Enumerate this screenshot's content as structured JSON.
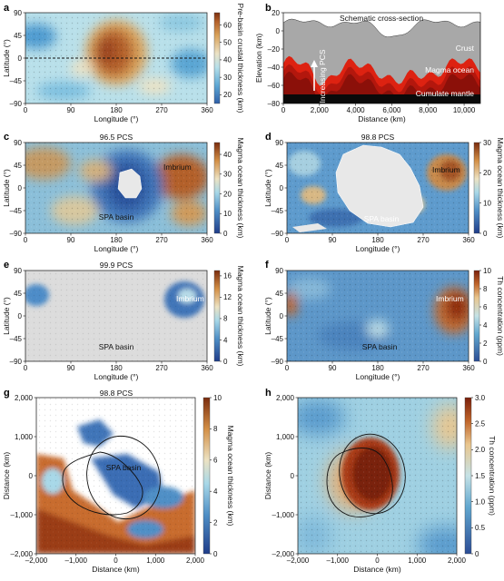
{
  "panels": [
    {
      "id": "a",
      "letter": "a",
      "type": "map",
      "title": "",
      "palette": "crust",
      "xlabel": "Longitude (°)",
      "ylabel": "Latitude (°)",
      "xticks": [
        "0",
        "90",
        "180",
        "270",
        "360"
      ],
      "yticks": [
        "90",
        "45",
        "0",
        "–45",
        "–90"
      ],
      "annotations": [],
      "colorbar": {
        "label": "Pre-basin crustal thickness (km)",
        "ticks": [
          "60",
          "50",
          "40",
          "30",
          "20"
        ],
        "min": 15,
        "max": 67
      }
    },
    {
      "id": "b",
      "letter": "b",
      "type": "cross-section",
      "title": "Schematic cross-section",
      "xlabel": "Distance (km)",
      "ylabel": "Elevation (km)",
      "xticks": [
        "0",
        "2,000",
        "4,000",
        "6,000",
        "8,000",
        "10,000"
      ],
      "yticks": [
        "20",
        "0",
        "–20",
        "–40",
        "–60",
        "–80"
      ],
      "xlim": [
        0,
        10900
      ],
      "ylim": [
        -80,
        20
      ],
      "layers": [
        "Crust",
        "Magma ocean",
        "Cumulate mantle"
      ],
      "arrow_text": "Increasing PCS"
    },
    {
      "id": "c",
      "letter": "c",
      "type": "map",
      "title": "96.5 PCS",
      "palette": "magma",
      "xlabel": "Longitude (°)",
      "ylabel": "Latitude (°)",
      "xticks": [
        "0",
        "90",
        "180",
        "270",
        "360"
      ],
      "yticks": [
        "90",
        "45",
        "0",
        "–45",
        "–90"
      ],
      "annotations": [
        "Imbrium",
        "SPA basin"
      ],
      "colorbar": {
        "label": "Magma ocean thickness (km)",
        "ticks": [
          "40",
          "30",
          "20",
          "10",
          "0"
        ],
        "min": 0,
        "max": 46
      }
    },
    {
      "id": "d",
      "letter": "d",
      "type": "map",
      "title": "98.8 PCS",
      "palette": "magma",
      "xlabel": "Longitude (°)",
      "ylabel": "Latitude (°)",
      "xticks": [
        "0",
        "90",
        "180",
        "270",
        "360"
      ],
      "yticks": [
        "90",
        "45",
        "0",
        "–45",
        "–90"
      ],
      "annotations": [
        "Imbrium",
        "SPA basin"
      ],
      "colorbar": {
        "label": "Magma ocean thickness (km)",
        "ticks": [
          "30",
          "20",
          "10",
          "0"
        ],
        "min": 0,
        "max": 30
      }
    },
    {
      "id": "e",
      "letter": "e",
      "type": "map",
      "title": "99.9 PCS",
      "palette": "magma",
      "xlabel": "Longitude (°)",
      "ylabel": "Latitude (°)",
      "xticks": [
        "0",
        "90",
        "180",
        "270",
        "360"
      ],
      "yticks": [
        "90",
        "45",
        "0",
        "–45",
        "–90"
      ],
      "annotations": [
        "Imbrium",
        "SPA basin"
      ],
      "colorbar": {
        "label": "Magma ocean thickness (km)",
        "ticks": [
          "16",
          "12",
          "8",
          "4",
          "0"
        ],
        "min": 0,
        "max": 17
      }
    },
    {
      "id": "f",
      "letter": "f",
      "type": "map",
      "title": "",
      "palette": "thorium",
      "xlabel": "Longitude (°)",
      "ylabel": "Latitude (°)",
      "xticks": [
        "0",
        "90",
        "180",
        "270",
        "360"
      ],
      "yticks": [
        "90",
        "45",
        "0",
        "–45",
        "–90"
      ],
      "annotations": [
        "Imbrium",
        "SPA basin"
      ],
      "colorbar": {
        "label": "Th concentration (ppm)",
        "ticks": [
          "10",
          "8",
          "6",
          "4",
          "2",
          "0"
        ],
        "min": 0,
        "max": 10
      }
    },
    {
      "id": "g",
      "letter": "g",
      "type": "polar",
      "title": "98.8 PCS",
      "palette": "magma",
      "xlabel": "Distance (km)",
      "ylabel": "Distance (km)",
      "xticks": [
        "–2,000",
        "–1,000",
        "0",
        "1,000",
        "2,000"
      ],
      "yticks": [
        "2,000",
        "1,000",
        "0",
        "–1,000",
        "–2,000"
      ],
      "annotations": [
        "SPA basin"
      ],
      "colorbar": {
        "label": "Magma ocean thickness (km)",
        "ticks": [
          "10",
          "8",
          "6",
          "4",
          "2",
          "0"
        ],
        "min": 0,
        "max": 10
      }
    },
    {
      "id": "h",
      "letter": "h",
      "type": "polar",
      "title": "",
      "palette": "thorium",
      "xlabel": "Distance (km)",
      "ylabel": "Distance (km)",
      "xticks": [
        "–2,000",
        "–1,000",
        "0",
        "1,000",
        "2,000"
      ],
      "yticks": [
        "2,000",
        "1,000",
        "0",
        "–1,000",
        "–2,000"
      ],
      "annotations": [],
      "colorbar": {
        "label": "Th concentration (ppm)",
        "ticks": [
          "3.0",
          "2.5",
          "2.0",
          "1.5",
          "1.0",
          "0.5",
          "0"
        ],
        "min": 0,
        "max": 3
      }
    }
  ],
  "chart_data": [
    {
      "type": "heatmap",
      "panel": "a",
      "xlabel": "Longitude (°)",
      "ylabel": "Latitude (°)",
      "xlim": [
        0,
        360
      ],
      "ylim": [
        -90,
        90
      ],
      "zlabel": "Pre-basin crustal thickness (km)",
      "zlim": [
        15,
        67
      ]
    },
    {
      "type": "area",
      "panel": "b",
      "title": "Schematic cross-section",
      "xlabel": "Distance (km)",
      "ylabel": "Elevation (km)",
      "xlim": [
        0,
        10900
      ],
      "ylim": [
        -80,
        20
      ],
      "series": [
        {
          "name": "Crust"
        },
        {
          "name": "Magma ocean"
        },
        {
          "name": "Cumulate mantle"
        }
      ]
    },
    {
      "type": "heatmap",
      "panel": "c",
      "title": "96.5 PCS",
      "xlim": [
        0,
        360
      ],
      "ylim": [
        -90,
        90
      ],
      "zlabel": "Magma ocean thickness (km)",
      "zlim": [
        0,
        46
      ]
    },
    {
      "type": "heatmap",
      "panel": "d",
      "title": "98.8 PCS",
      "xlim": [
        0,
        360
      ],
      "ylim": [
        -90,
        90
      ],
      "zlabel": "Magma ocean thickness (km)",
      "zlim": [
        0,
        30
      ]
    },
    {
      "type": "heatmap",
      "panel": "e",
      "title": "99.9 PCS",
      "xlim": [
        0,
        360
      ],
      "ylim": [
        -90,
        90
      ],
      "zlabel": "Magma ocean thickness (km)",
      "zlim": [
        0,
        17
      ]
    },
    {
      "type": "heatmap",
      "panel": "f",
      "xlim": [
        0,
        360
      ],
      "ylim": [
        -90,
        90
      ],
      "zlabel": "Th concentration (ppm)",
      "zlim": [
        0,
        10
      ]
    },
    {
      "type": "heatmap",
      "panel": "g",
      "title": "98.8 PCS",
      "xlim": [
        -2500,
        2500
      ],
      "ylim": [
        -2500,
        2500
      ],
      "zlabel": "Magma ocean thickness (km)",
      "zlim": [
        0,
        10
      ]
    },
    {
      "type": "heatmap",
      "panel": "h",
      "xlim": [
        -2500,
        2500
      ],
      "ylim": [
        -2500,
        2500
      ],
      "zlabel": "Th concentration (ppm)",
      "zlim": [
        0,
        3
      ]
    }
  ],
  "colors": {
    "ocean_hot": "#dd2211",
    "ocean_dark": "#7a0c08",
    "mantle": "#0a0a0a",
    "crust": "#a8a8a8",
    "basin_fill": "#e8e8e8",
    "imbrium_text": "#ffffff"
  }
}
